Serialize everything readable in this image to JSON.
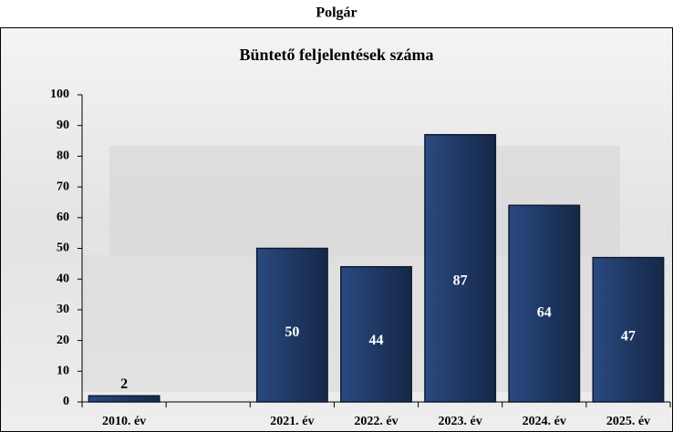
{
  "header": {
    "title": "Polgár"
  },
  "chart_data": {
    "type": "bar",
    "title": "Büntető feljelentések száma",
    "categories": [
      "2010. év",
      null,
      "2021. év",
      "2022. év",
      "2023. év",
      "2024. év",
      "2025. év"
    ],
    "values": [
      2,
      null,
      50,
      44,
      87,
      64,
      47
    ],
    "color": "#1f3864",
    "ylim": [
      0,
      100
    ],
    "yticks": [
      0,
      10,
      20,
      30,
      40,
      50,
      60,
      70,
      80,
      90,
      100
    ],
    "data_labels": true
  }
}
